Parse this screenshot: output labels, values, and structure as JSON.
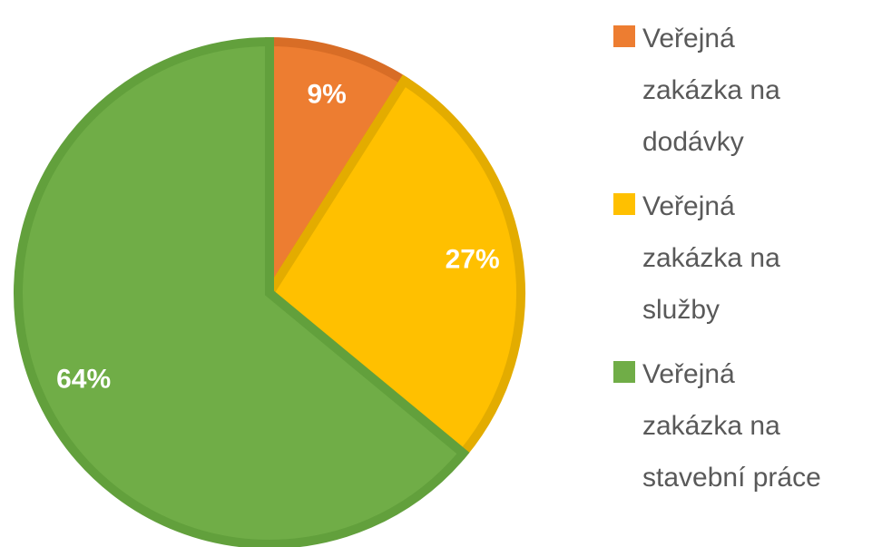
{
  "chart_data": {
    "type": "pie",
    "categories": [
      "Veřejná zakázka na dodávky",
      "Veřejná zakázka na služby",
      "Veřejná zakázka na stavební práce"
    ],
    "values": [
      9,
      27,
      64
    ],
    "value_labels": [
      "9%",
      "27%",
      "64%"
    ],
    "colors": [
      "#ed7d31",
      "#ffc000",
      "#70ad47"
    ],
    "edge_colors": [
      "#d86d26",
      "#e3ac00",
      "#62a03c"
    ],
    "legend": "right"
  }
}
